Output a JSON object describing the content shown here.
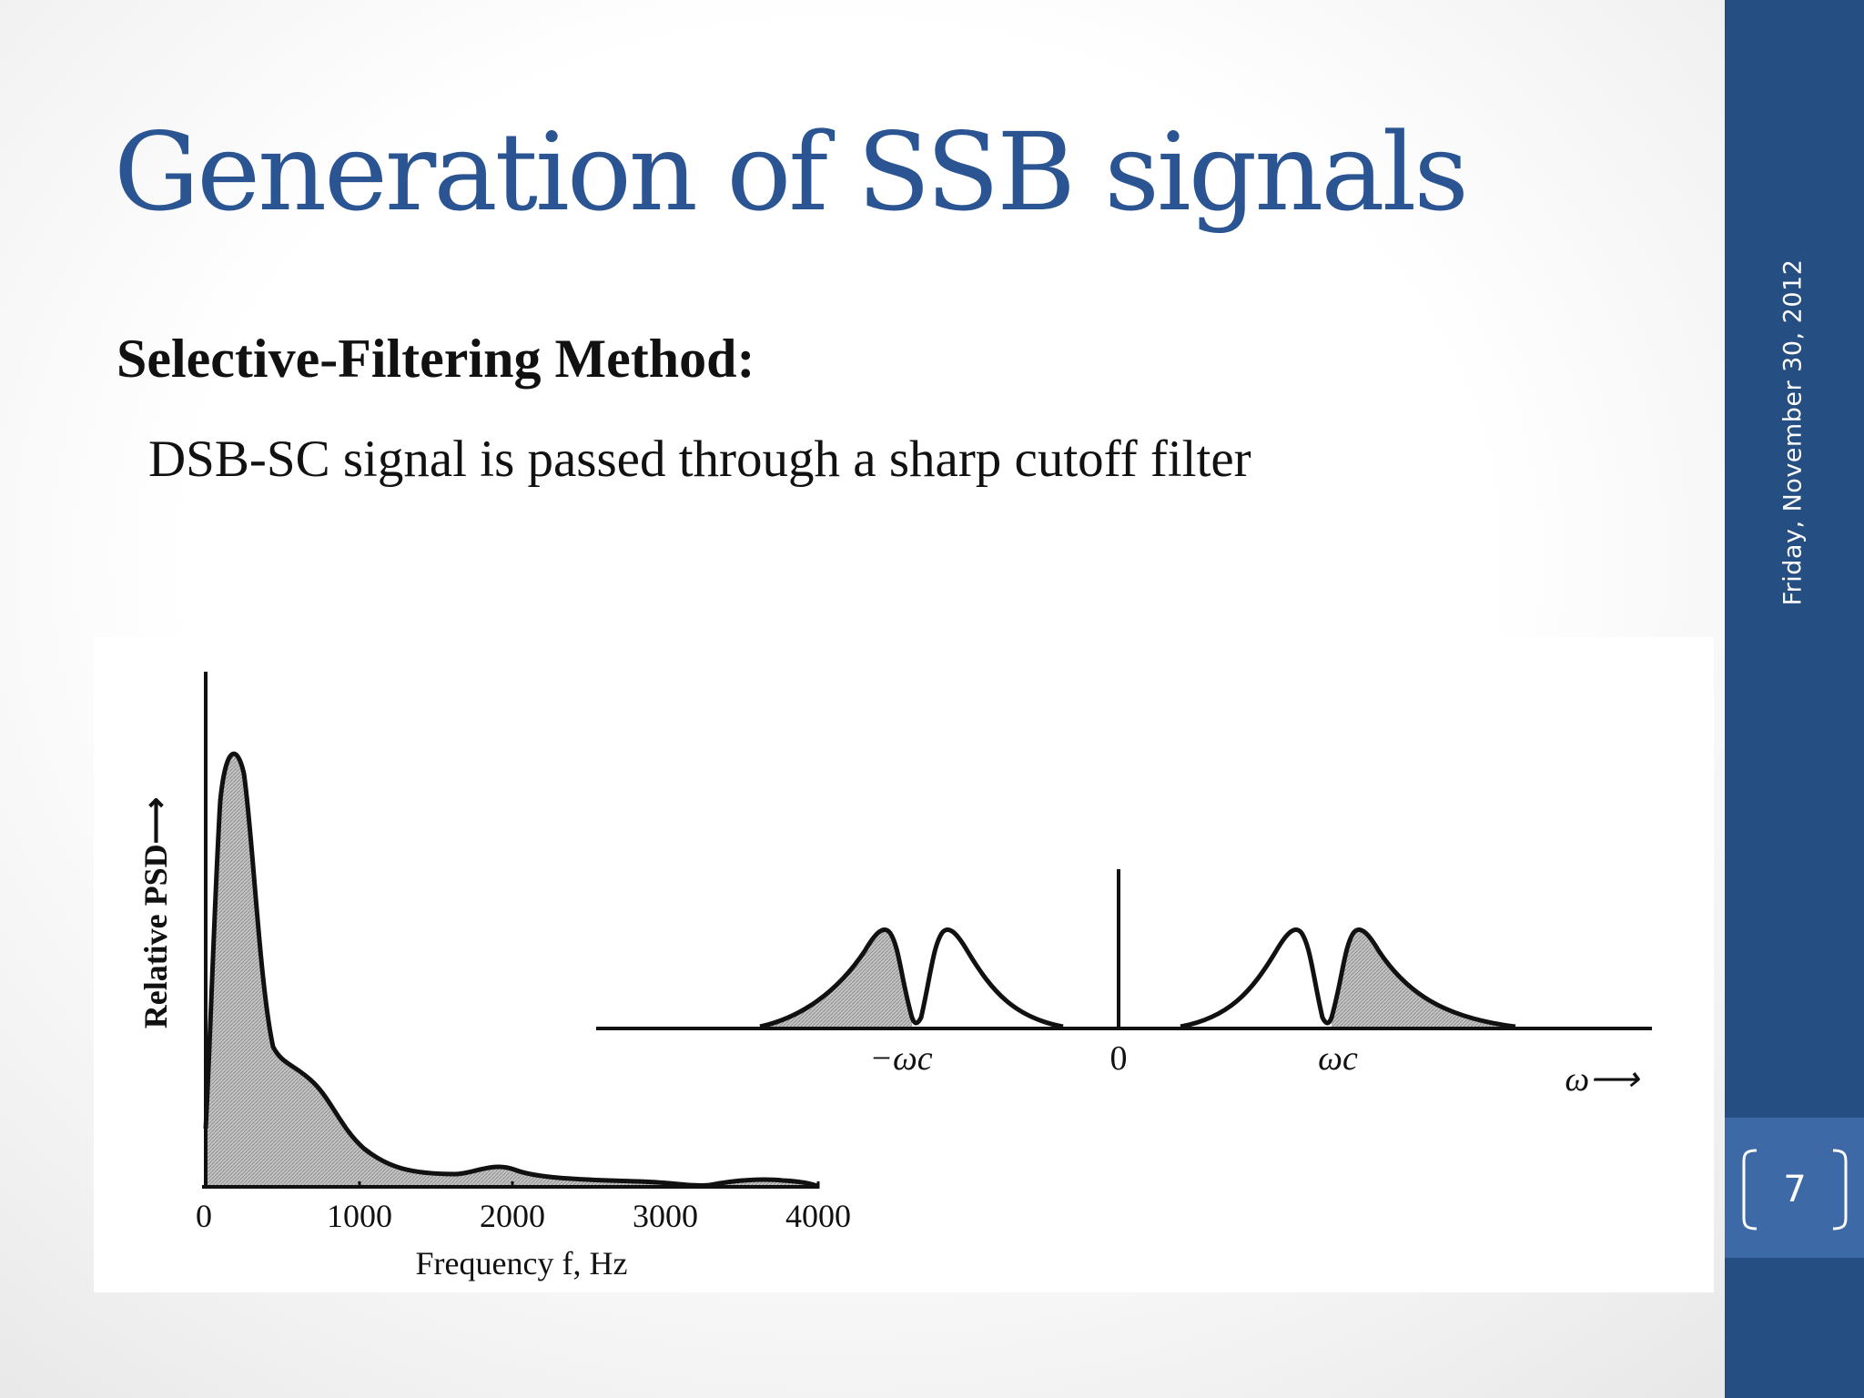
{
  "slide": {
    "title": "Generation of SSB signals",
    "method_heading": "Selective-Filtering Method:",
    "method_text": "DSB-SC signal is passed through a sharp cutoff filter",
    "date": "Friday, November 30, 2012",
    "page_number": "7"
  },
  "colors": {
    "title": "#2a5592",
    "sidebar": "#254e83",
    "page_box": "#3d6aa6",
    "fill": "#b9b9b9"
  },
  "psd_figure": {
    "ylabel": "Relative PSD⟶",
    "xlabel": "Frequency f, Hz",
    "xticks": [
      "0",
      "1000",
      "2000",
      "3000",
      "4000"
    ]
  },
  "ssb_figure": {
    "labels": {
      "neg_wc": "−ωc",
      "zero": "0",
      "pos_wc": "ωc",
      "omega": "ω⟶"
    }
  }
}
